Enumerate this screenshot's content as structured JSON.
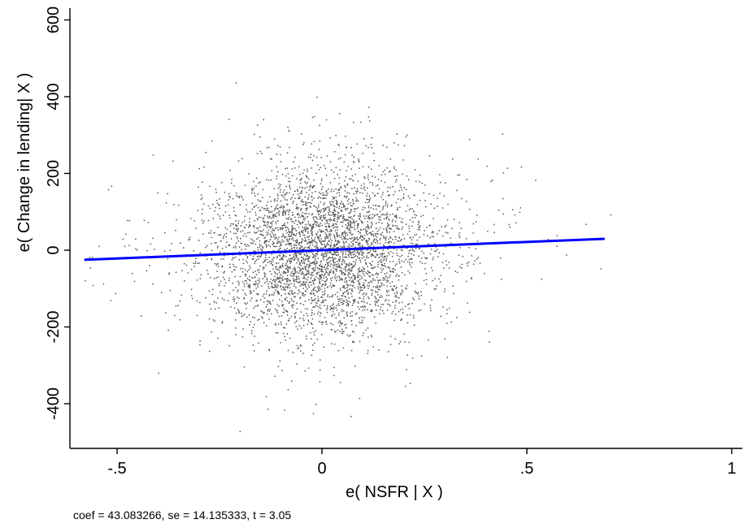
{
  "chart_data": {
    "type": "scatter",
    "title": "",
    "xlabel": "e( NSFR | X )",
    "ylabel": "e( Change in lending| X )",
    "xlim": [
      -0.6,
      1.0
    ],
    "ylim": [
      -500,
      620
    ],
    "x_ticks": [
      -0.5,
      0,
      0.5,
      1
    ],
    "x_tick_labels": [
      "-.5",
      "0",
      ".5",
      "1"
    ],
    "y_ticks": [
      -400,
      -200,
      0,
      200,
      400,
      600
    ],
    "y_tick_labels": [
      "-400",
      "-200",
      "0",
      "200",
      "400",
      "600"
    ],
    "grid": false,
    "legend": "none",
    "colors": {
      "points": "#555555",
      "fit_line": "#0000ff",
      "axis": "#000000"
    },
    "fit_line": {
      "slope": 43.083266,
      "x_range": [
        -0.58,
        0.69
      ]
    },
    "scatter": {
      "n_points": 4000,
      "x_center": 0.0,
      "x_spread": 0.13,
      "y_center": 0,
      "y_spread": 105,
      "note": "dense cloud of residual points centered near (0,0)"
    }
  },
  "footnote": "coef = 43.083266, se = 14.135333, t = 3.05"
}
